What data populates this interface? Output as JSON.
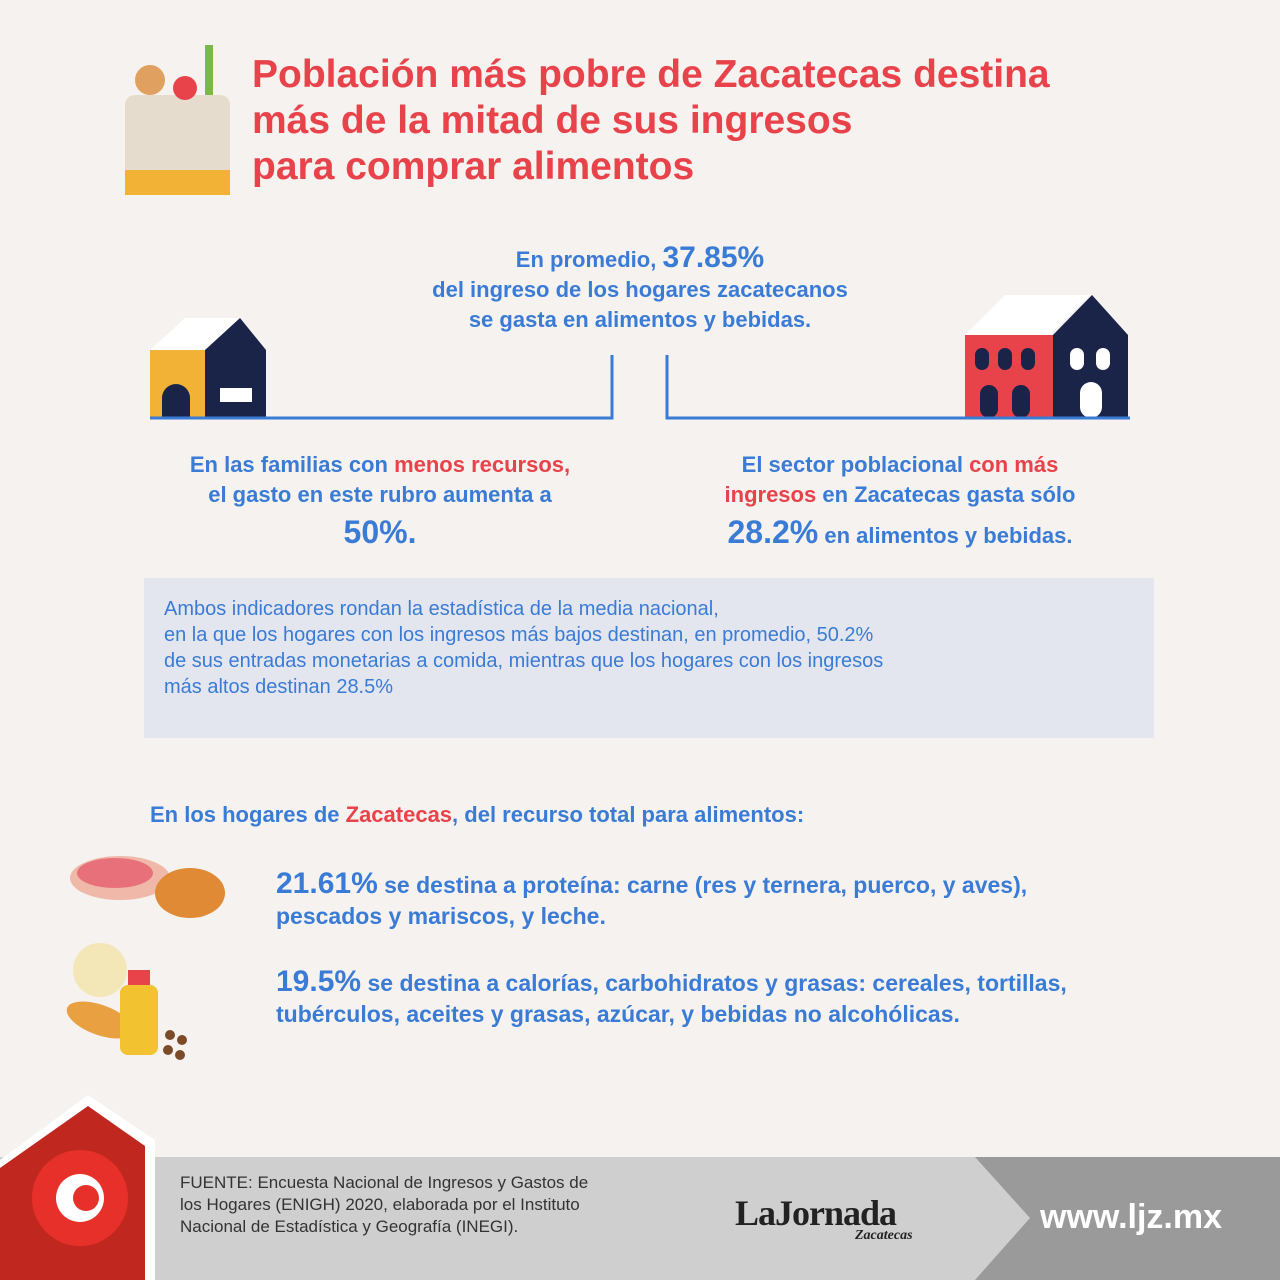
{
  "header": {
    "title": [
      "Población más pobre de Zacatecas destina",
      "más de la mitad de sus ingresos",
      "para comprar alimentos"
    ]
  },
  "average": {
    "lead": "En promedio,",
    "value": "37.85%",
    "lines": [
      "del ingreso de los hogares zacatecanos",
      "se gasta en alimentos y bebidas."
    ]
  },
  "low_income": {
    "a": "En las familias con",
    "highlight": "menos recursos,",
    "b": "el gasto en este rubro aumenta a",
    "value": "50%."
  },
  "high_income": {
    "a": "El sector poblacional",
    "highlight_1": "con más",
    "highlight_2": "ingresos",
    "b": "en Zacatecas gasta sólo",
    "value": "28.2%",
    "c": "en alimentos y bebidas."
  },
  "note": {
    "lines": [
      "Ambos indicadores rondan la estadística de la media nacional,",
      "en la que los hogares con los ingresos más bajos destinan, en promedio, 50.2%",
      "de sus entradas monetarias a comida, mientras que los hogares con los ingresos",
      "más altos destinan 28.5%"
    ]
  },
  "breakdown": {
    "lead": "En los hogares de",
    "highlight": "Zacatecas",
    "rest": ", del recurso total para alimentos:",
    "items": [
      {
        "value": "21.61%",
        "text": "se destina a proteína: carne (res y ternera, puerco, y aves), pescados y mariscos, y leche."
      },
      {
        "value": "19.5%",
        "text": "se destina a calorías, carbohidratos y grasas: cereales, tortillas, tubérculos, aceites y grasas, azúcar, y bebidas no alcohólicas."
      }
    ]
  },
  "footer": {
    "source": [
      "FUENTE: Encuesta Nacional de Ingresos y Gastos de",
      "los Hogares (ENIGH) 2020, elaborada por el Instituto",
      "Nacional de Estadística y Geografía (INEGI)."
    ],
    "brand": "LaJornada",
    "brand_sub": "Zacatecas",
    "url": "www.ljz.mx"
  }
}
